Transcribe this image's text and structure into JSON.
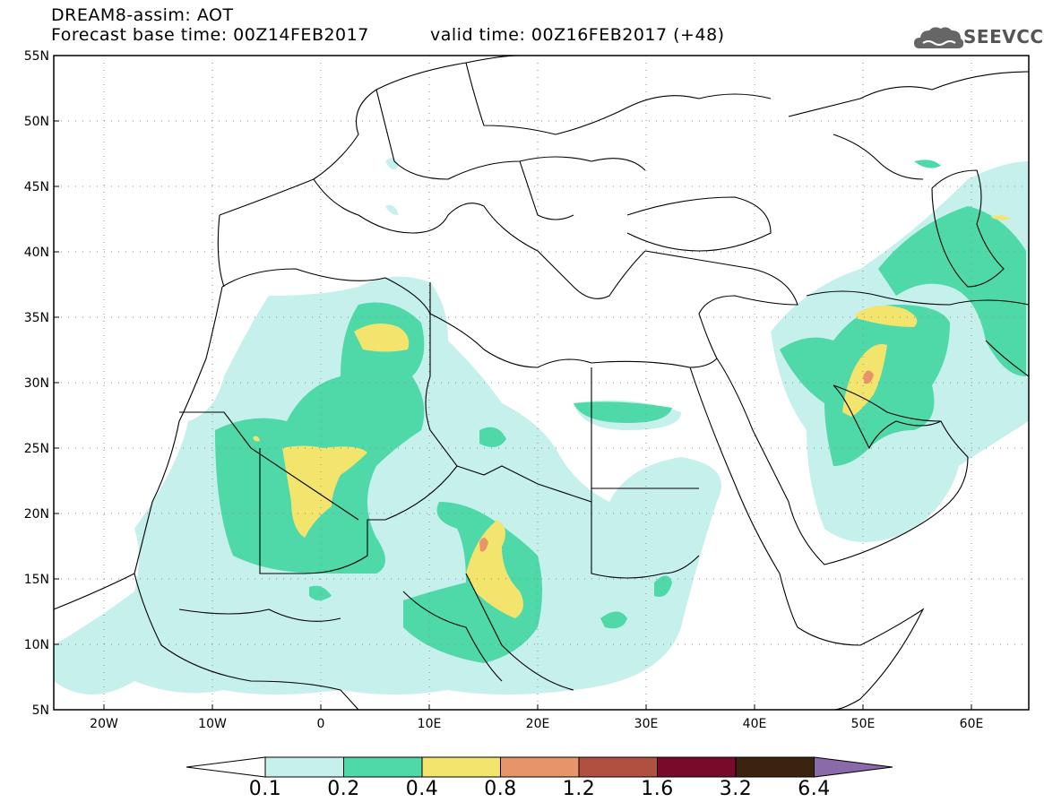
{
  "header": {
    "title": "DREAM8-assim: AOT",
    "base_time": "Forecast base time: 00Z14FEB2017",
    "valid_time": "valid time: 00Z16FEB2017 (+48)"
  },
  "logo": {
    "text": "SEEVCCC",
    "icon": "cloud-icon"
  },
  "map": {
    "lon_range": [
      -25,
      65
    ],
    "lat_range": [
      5,
      55
    ],
    "lat_ticks": [
      "55N",
      "50N",
      "45N",
      "40N",
      "35N",
      "30N",
      "25N",
      "20N",
      "15N",
      "10N",
      "5N"
    ],
    "lon_ticks": [
      "20W",
      "10W",
      "0",
      "10E",
      "20E",
      "30E",
      "40E",
      "50E",
      "60E"
    ],
    "grid": true
  },
  "colorbar": {
    "labels": [
      "0.1",
      "0.2",
      "0.4",
      "0.8",
      "1.2",
      "1.6",
      "3.2",
      "6.4"
    ],
    "colors": [
      "#ffffff",
      "#c6f0ec",
      "#4fd8a8",
      "#f2e46c",
      "#e8946a",
      "#b05040",
      "#7a0a2a",
      "#3a2410",
      "#8a6aa8"
    ]
  }
}
